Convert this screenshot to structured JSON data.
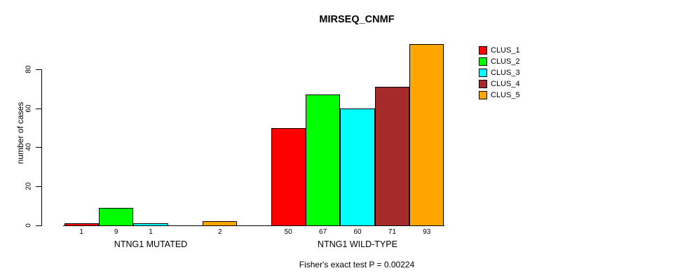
{
  "chart_data": {
    "type": "bar",
    "title": "MIRSEQ_CNMF",
    "ylabel": "number of cases",
    "xlabel": "",
    "yticks": [
      0,
      20,
      40,
      60,
      80
    ],
    "ylim": [
      0,
      93
    ],
    "grid": false,
    "legend_position": "right",
    "categories": [
      "NTNG1 MUTATED",
      "NTNG1 WILD-TYPE"
    ],
    "series": [
      {
        "name": "CLUS_1",
        "color": "#FF0000",
        "values": [
          1,
          50
        ]
      },
      {
        "name": "CLUS_2",
        "color": "#00FF00",
        "values": [
          9,
          67
        ]
      },
      {
        "name": "CLUS_3",
        "color": "#00FFFF",
        "values": [
          1,
          60
        ]
      },
      {
        "name": "CLUS_4",
        "color": "#A52A2A",
        "values": [
          0,
          71
        ]
      },
      {
        "name": "CLUS_5",
        "color": "#FFA500",
        "values": [
          2,
          93
        ]
      }
    ],
    "value_labels": [
      [
        "1",
        "9",
        "1",
        "",
        "2"
      ],
      [
        "50",
        "67",
        "60",
        "71",
        "93"
      ]
    ],
    "annotation": "Fisher's exact test P = 0.00224"
  },
  "colors": {
    "axis": "#000000",
    "text": "#000000",
    "background": "#FFFFFF"
  }
}
